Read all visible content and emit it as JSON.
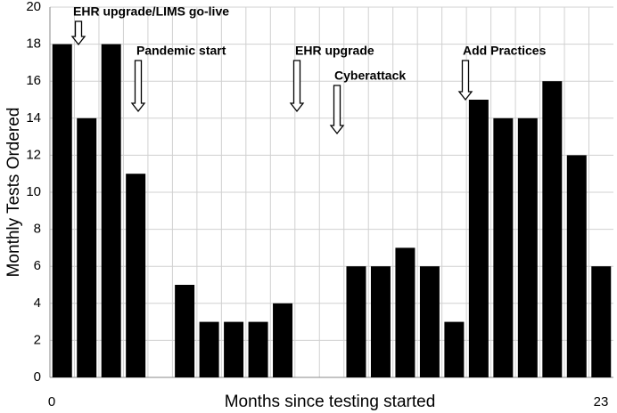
{
  "chart_data": {
    "type": "bar",
    "y_label": "Monthly Tests Ordered",
    "x_label": "Months since testing started",
    "values": [
      18,
      14,
      18,
      11,
      0,
      5,
      3,
      3,
      3,
      4,
      0,
      0,
      6,
      6,
      7,
      6,
      3,
      15,
      14,
      14,
      16,
      12,
      6
    ],
    "color": "#000000",
    "ylim": [
      0,
      20
    ],
    "yticks": [
      0,
      2,
      4,
      6,
      8,
      10,
      12,
      14,
      16,
      18,
      20
    ],
    "xlim": [
      0,
      23
    ],
    "xticks": [
      0,
      23
    ],
    "grid": true,
    "annotations": [
      "EHR upgrade/LIMS go-live",
      "Pandemic start",
      "EHR upgrade",
      "Cyberattack",
      "Add Practices"
    ]
  }
}
